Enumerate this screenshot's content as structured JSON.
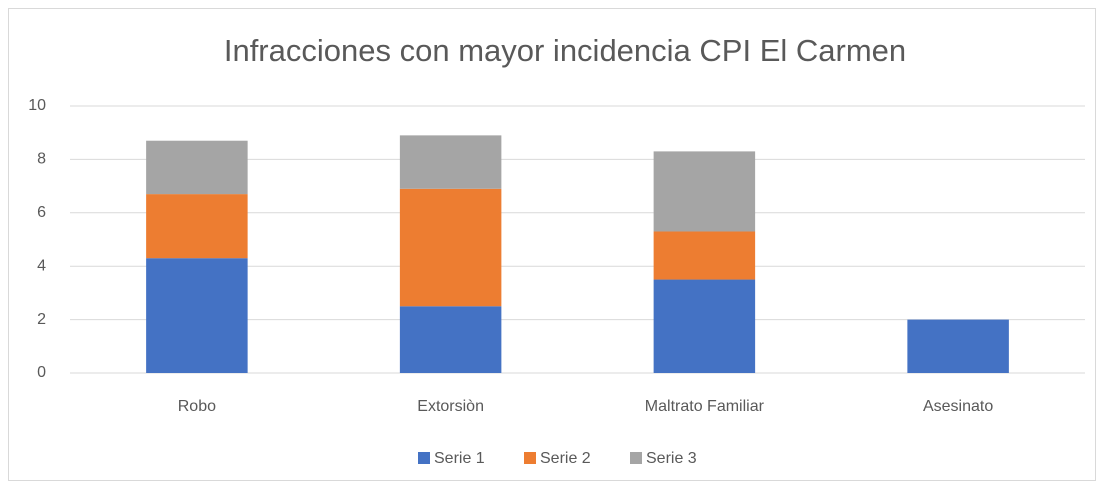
{
  "chart_data": {
    "type": "stacked_bar",
    "title": "Infracciones con mayor incidencia CPI El Carmen",
    "categories": [
      "Robo",
      "Extorsiòn",
      "Maltrato Familiar",
      "Asesinato"
    ],
    "series": [
      {
        "name": "Serie 1",
        "color": "#4472c4",
        "values": [
          4.3,
          2.5,
          3.5,
          2
        ]
      },
      {
        "name": "Serie 2",
        "color": "#ed7d31",
        "values": [
          2.4,
          4.4,
          1.8,
          0
        ]
      },
      {
        "name": "Serie 3",
        "color": "#a5a5a5",
        "values": [
          2.0,
          2.0,
          3.0,
          0
        ]
      }
    ],
    "ylim": [
      0,
      10
    ],
    "yticks": [
      0,
      2,
      4,
      6,
      8,
      10
    ],
    "grid": true,
    "legend": "bottom"
  }
}
